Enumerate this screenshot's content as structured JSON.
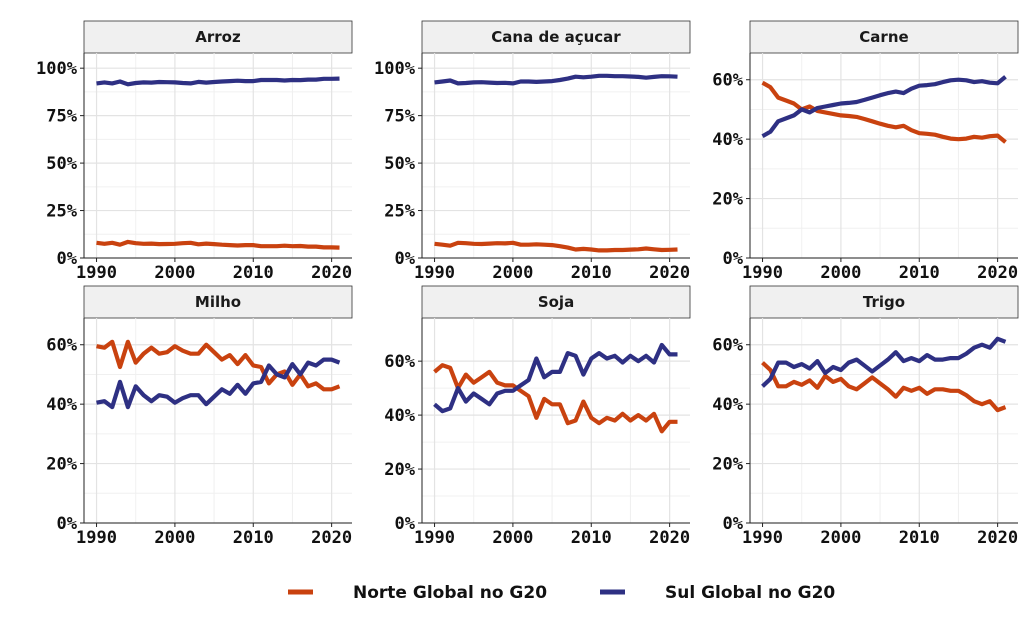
{
  "chart_data": {
    "type": "line",
    "legend_position": "bottom",
    "grid": true,
    "colors": {
      "norte": "#C9420F",
      "sul": "#2E3083"
    },
    "legend": [
      {
        "key": "norte",
        "label": "Norte Global no G20"
      },
      {
        "key": "sul",
        "label": "Sul Global no G20"
      }
    ],
    "x": [
      1990,
      1991,
      1992,
      1993,
      1994,
      1995,
      1996,
      1997,
      1998,
      1999,
      2000,
      2001,
      2002,
      2003,
      2004,
      2005,
      2006,
      2007,
      2008,
      2009,
      2010,
      2011,
      2012,
      2013,
      2014,
      2015,
      2016,
      2017,
      2018,
      2019,
      2020,
      2021
    ],
    "xticks": [
      1990,
      2000,
      2010,
      2020
    ],
    "panels": [
      {
        "title": "Arroz",
        "ylim": [
          0,
          1.08
        ],
        "yticks": [
          0,
          0.25,
          0.5,
          0.75,
          1.0
        ],
        "ytick_labels": [
          "0%",
          "25%",
          "50%",
          "75%",
          "100%"
        ],
        "norte": [
          0.08,
          0.075,
          0.08,
          0.07,
          0.085,
          0.078,
          0.075,
          0.076,
          0.073,
          0.074,
          0.075,
          0.078,
          0.08,
          0.072,
          0.076,
          0.073,
          0.07,
          0.068,
          0.066,
          0.068,
          0.068,
          0.062,
          0.062,
          0.062,
          0.065,
          0.062,
          0.063,
          0.06,
          0.06,
          0.056,
          0.056,
          0.055
        ],
        "sul": [
          0.92,
          0.925,
          0.92,
          0.93,
          0.915,
          0.922,
          0.925,
          0.924,
          0.927,
          0.926,
          0.925,
          0.922,
          0.92,
          0.928,
          0.924,
          0.927,
          0.93,
          0.932,
          0.934,
          0.932,
          0.932,
          0.938,
          0.938,
          0.938,
          0.935,
          0.938,
          0.937,
          0.94,
          0.94,
          0.944,
          0.944,
          0.945
        ]
      },
      {
        "title": "Cana de açucar",
        "ylim": [
          0,
          1.08
        ],
        "yticks": [
          0,
          0.25,
          0.5,
          0.75,
          1.0
        ],
        "ytick_labels": [
          "0%",
          "25%",
          "50%",
          "75%",
          "100%"
        ],
        "norte": [
          0.075,
          0.07,
          0.065,
          0.08,
          0.078,
          0.075,
          0.074,
          0.076,
          0.078,
          0.077,
          0.08,
          0.07,
          0.07,
          0.072,
          0.07,
          0.068,
          0.062,
          0.055,
          0.045,
          0.048,
          0.045,
          0.04,
          0.04,
          0.042,
          0.042,
          0.044,
          0.046,
          0.05,
          0.046,
          0.042,
          0.043,
          0.045
        ],
        "sul": [
          0.925,
          0.93,
          0.935,
          0.92,
          0.922,
          0.925,
          0.926,
          0.924,
          0.922,
          0.923,
          0.92,
          0.93,
          0.93,
          0.928,
          0.93,
          0.932,
          0.938,
          0.945,
          0.955,
          0.952,
          0.955,
          0.96,
          0.96,
          0.958,
          0.958,
          0.956,
          0.954,
          0.95,
          0.954,
          0.958,
          0.957,
          0.955
        ]
      },
      {
        "title": "Carne",
        "ylim": [
          0,
          0.69
        ],
        "yticks": [
          0,
          0.2,
          0.4,
          0.6
        ],
        "ytick_labels": [
          "0%",
          "20%",
          "40%",
          "60%"
        ],
        "norte": [
          0.59,
          0.575,
          0.54,
          0.53,
          0.52,
          0.5,
          0.51,
          0.495,
          0.49,
          0.485,
          0.48,
          0.478,
          0.475,
          0.468,
          0.46,
          0.452,
          0.445,
          0.44,
          0.445,
          0.43,
          0.42,
          0.418,
          0.415,
          0.408,
          0.402,
          0.4,
          0.402,
          0.408,
          0.405,
          0.41,
          0.412,
          0.39
        ],
        "sul": [
          0.41,
          0.425,
          0.46,
          0.47,
          0.48,
          0.5,
          0.49,
          0.505,
          0.51,
          0.515,
          0.52,
          0.522,
          0.525,
          0.532,
          0.54,
          0.548,
          0.555,
          0.56,
          0.555,
          0.57,
          0.58,
          0.582,
          0.585,
          0.592,
          0.598,
          0.6,
          0.598,
          0.592,
          0.595,
          0.59,
          0.588,
          0.61
        ]
      },
      {
        "title": "Milho",
        "ylim": [
          0,
          0.69
        ],
        "yticks": [
          0,
          0.2,
          0.4,
          0.6
        ],
        "ytick_labels": [
          "0%",
          "20%",
          "40%",
          "60%"
        ],
        "norte": [
          0.595,
          0.59,
          0.61,
          0.525,
          0.61,
          0.54,
          0.57,
          0.59,
          0.57,
          0.575,
          0.595,
          0.58,
          0.57,
          0.57,
          0.6,
          0.575,
          0.55,
          0.565,
          0.535,
          0.565,
          0.53,
          0.525,
          0.47,
          0.5,
          0.51,
          0.465,
          0.5,
          0.46,
          0.47,
          0.45,
          0.45,
          0.46
        ],
        "sul": [
          0.405,
          0.41,
          0.39,
          0.475,
          0.39,
          0.46,
          0.43,
          0.41,
          0.43,
          0.425,
          0.405,
          0.42,
          0.43,
          0.43,
          0.4,
          0.425,
          0.45,
          0.435,
          0.465,
          0.435,
          0.47,
          0.475,
          0.53,
          0.5,
          0.49,
          0.535,
          0.5,
          0.54,
          0.53,
          0.55,
          0.55,
          0.54
        ]
      },
      {
        "title": "Soja",
        "ylim": [
          0,
          0.76
        ],
        "yticks": [
          0,
          0.2,
          0.4,
          0.6
        ],
        "ytick_labels": [
          "0%",
          "20%",
          "40%",
          "60%"
        ],
        "norte": [
          0.56,
          0.585,
          0.575,
          0.5,
          0.55,
          0.52,
          0.54,
          0.56,
          0.52,
          0.51,
          0.51,
          0.49,
          0.47,
          0.39,
          0.46,
          0.44,
          0.44,
          0.37,
          0.38,
          0.45,
          0.39,
          0.37,
          0.39,
          0.38,
          0.405,
          0.38,
          0.4,
          0.38,
          0.405,
          0.34,
          0.375,
          0.375
        ],
        "sul": [
          0.44,
          0.415,
          0.425,
          0.5,
          0.45,
          0.48,
          0.46,
          0.44,
          0.48,
          0.49,
          0.49,
          0.51,
          0.53,
          0.61,
          0.54,
          0.56,
          0.56,
          0.63,
          0.62,
          0.55,
          0.61,
          0.63,
          0.61,
          0.62,
          0.595,
          0.62,
          0.6,
          0.62,
          0.595,
          0.66,
          0.625,
          0.625
        ]
      },
      {
        "title": "Trigo",
        "ylim": [
          0,
          0.69
        ],
        "yticks": [
          0,
          0.2,
          0.4,
          0.6
        ],
        "ytick_labels": [
          "0%",
          "20%",
          "40%",
          "60%"
        ],
        "norte": [
          0.54,
          0.515,
          0.46,
          0.46,
          0.475,
          0.465,
          0.48,
          0.455,
          0.495,
          0.475,
          0.485,
          0.46,
          0.45,
          0.47,
          0.49,
          0.47,
          0.45,
          0.425,
          0.455,
          0.445,
          0.455,
          0.435,
          0.45,
          0.45,
          0.445,
          0.445,
          0.43,
          0.41,
          0.4,
          0.41,
          0.38,
          0.39
        ],
        "sul": [
          0.46,
          0.485,
          0.54,
          0.54,
          0.525,
          0.535,
          0.52,
          0.545,
          0.505,
          0.525,
          0.515,
          0.54,
          0.55,
          0.53,
          0.51,
          0.53,
          0.55,
          0.575,
          0.545,
          0.555,
          0.545,
          0.565,
          0.55,
          0.55,
          0.555,
          0.555,
          0.57,
          0.59,
          0.6,
          0.59,
          0.62,
          0.61
        ]
      }
    ]
  }
}
